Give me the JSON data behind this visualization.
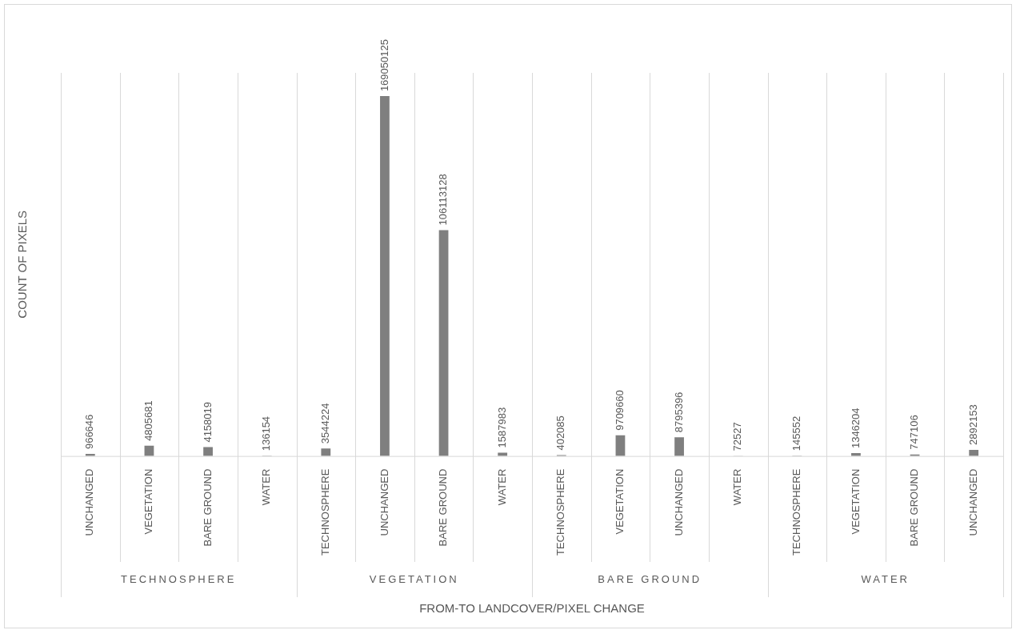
{
  "chart_data": {
    "type": "bar",
    "xlabel": "FROM-TO LANDCOVER/PIXEL CHANGE",
    "ylabel": "COUNT OF PIXELS",
    "categories": [
      "UNCHANGED",
      "VEGETATION",
      "BARE GROUND",
      "WATER",
      "TECHNOSPHERE",
      "UNCHANGED",
      "BARE GROUND",
      "WATER",
      "TECHNOSPHERE",
      "VEGETATION",
      "UNCHANGED",
      "WATER",
      "TECHNOSPHERE",
      "VEGETATION",
      "BARE GROUND",
      "UNCHANGED"
    ],
    "values": [
      966646,
      4805681,
      4158019,
      136154,
      3544224,
      169050125,
      106113128,
      1587983,
      402085,
      9709660,
      8795396,
      72527,
      145552,
      1346204,
      747106,
      2892153
    ],
    "color": "#7f7f7f",
    "tick_labels": "x",
    "data_labels": true,
    "grid": "x",
    "legend": false,
    "annotations": [
      "TECHNOSPHERE",
      "VEGETATION",
      "BARE GROUND",
      "WATER"
    ]
  }
}
